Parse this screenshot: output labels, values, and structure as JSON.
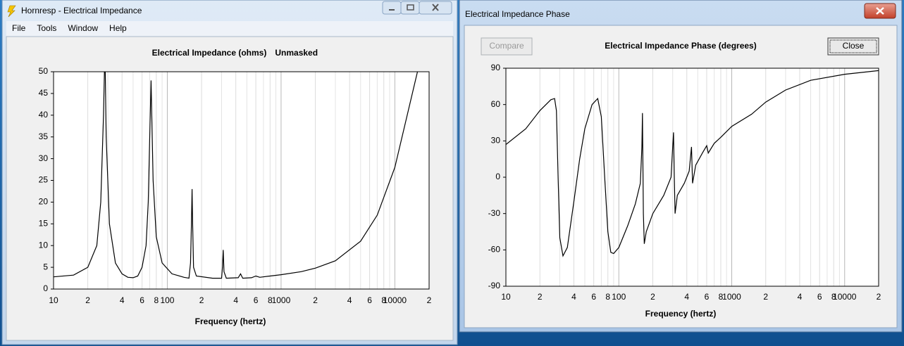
{
  "windows": [
    {
      "title": "Hornresp - Electrical Impedance",
      "menu": [
        "File",
        "Tools",
        "Window",
        "Help"
      ]
    },
    {
      "title": "Electrical Impedance Phase",
      "buttons": [
        "Compare",
        "Close"
      ]
    }
  ],
  "chart_data": [
    {
      "type": "line",
      "title": "Electrical Impedance (ohms)",
      "subtitle": "Unmasked",
      "x_label": "Frequency (hertz)",
      "x": [
        10,
        15,
        20,
        24,
        26,
        27.5,
        28,
        28.5,
        29,
        31,
        35,
        40,
        45,
        50,
        55,
        60,
        65,
        68,
        70,
        72,
        73,
        75,
        80,
        90,
        110,
        140,
        155,
        160,
        163,
        165,
        167,
        170,
        180,
        250,
        300,
        305,
        310,
        315,
        330,
        420,
        440,
        460,
        550,
        600,
        650,
        800,
        1000,
        1500,
        2000,
        3000,
        5000,
        7000,
        10000,
        15800
      ],
      "values": [
        2.8,
        3.2,
        5,
        10,
        20,
        40,
        50,
        50,
        35,
        15,
        6,
        3.5,
        2.7,
        2.6,
        3,
        5,
        10,
        20,
        35,
        48,
        40,
        25,
        12,
        6,
        3.5,
        2.7,
        2.5,
        6,
        15,
        23,
        15,
        5,
        3,
        2.5,
        2.5,
        5,
        9,
        4,
        2.5,
        2.6,
        3.5,
        2.5,
        2.6,
        3,
        2.7,
        3,
        3.3,
        4,
        4.8,
        6.5,
        11,
        17,
        28,
        50
      ],
      "color": "#000000",
      "log_x": true,
      "grid": true,
      "xlim": [
        10,
        20000
      ],
      "ylim": [
        0,
        50
      ],
      "xticks": [
        10,
        {
          "value": 20,
          "label": "2"
        },
        {
          "value": 40,
          "label": "4"
        },
        {
          "value": 60,
          "label": "6"
        },
        {
          "value": 80,
          "label": "8"
        },
        100,
        {
          "value": 200,
          "label": "2"
        },
        {
          "value": 400,
          "label": "4"
        },
        {
          "value": 600,
          "label": "6"
        },
        {
          "value": 800,
          "label": "8"
        },
        1000,
        {
          "value": 2000,
          "label": "2"
        },
        {
          "value": 4000,
          "label": "4"
        },
        {
          "value": 6000,
          "label": "6"
        },
        {
          "value": 8000,
          "label": "8"
        },
        10000,
        {
          "value": 20000,
          "label": "2"
        }
      ],
      "xminor": [
        30,
        50,
        70,
        90,
        300,
        500,
        700,
        900,
        3000,
        5000,
        7000,
        9000
      ],
      "yticks": [
        0,
        5,
        10,
        15,
        20,
        25,
        30,
        35,
        40,
        45,
        50
      ]
    },
    {
      "type": "line",
      "title": "Electrical Impedance Phase (degrees)",
      "x_label": "Frequency (hertz)",
      "x": [
        10,
        15,
        20,
        25,
        27,
        28,
        29,
        30,
        32,
        35,
        40,
        45,
        50,
        58,
        65,
        70,
        75,
        80,
        85,
        90,
        100,
        120,
        140,
        155,
        160,
        162,
        165,
        168,
        175,
        200,
        250,
        290,
        300,
        305,
        310,
        315,
        330,
        380,
        420,
        440,
        450,
        480,
        550,
        600,
        620,
        700,
        800,
        1000,
        1500,
        2000,
        3000,
        5000,
        10000,
        20000
      ],
      "values": [
        27,
        40,
        55,
        64,
        65,
        55,
        0,
        -50,
        -65,
        -58,
        -20,
        15,
        40,
        60,
        65,
        50,
        0,
        -45,
        -62,
        -63,
        -58,
        -40,
        -22,
        -5,
        25,
        53,
        -30,
        -55,
        -45,
        -30,
        -15,
        0,
        25,
        37,
        0,
        -30,
        -15,
        -5,
        5,
        25,
        -5,
        10,
        20,
        26,
        20,
        28,
        33,
        42,
        52,
        62,
        72,
        80,
        85,
        88
      ],
      "color": "#000000",
      "log_x": true,
      "grid": true,
      "xlim": [
        10,
        20000
      ],
      "ylim": [
        -90,
        90
      ],
      "xticks": [
        10,
        {
          "value": 20,
          "label": "2"
        },
        {
          "value": 40,
          "label": "4"
        },
        {
          "value": 60,
          "label": "6"
        },
        {
          "value": 80,
          "label": "8"
        },
        100,
        {
          "value": 200,
          "label": "2"
        },
        {
          "value": 400,
          "label": "4"
        },
        {
          "value": 600,
          "label": "6"
        },
        {
          "value": 800,
          "label": "8"
        },
        1000,
        {
          "value": 2000,
          "label": "2"
        },
        {
          "value": 4000,
          "label": "4"
        },
        {
          "value": 6000,
          "label": "6"
        },
        {
          "value": 8000,
          "label": "8"
        },
        10000,
        {
          "value": 20000,
          "label": "2"
        }
      ],
      "xminor": [
        30,
        50,
        70,
        90,
        300,
        500,
        700,
        900,
        3000,
        5000,
        7000,
        9000
      ],
      "yticks": [
        -90,
        -60,
        -30,
        0,
        30,
        60,
        90
      ]
    }
  ]
}
